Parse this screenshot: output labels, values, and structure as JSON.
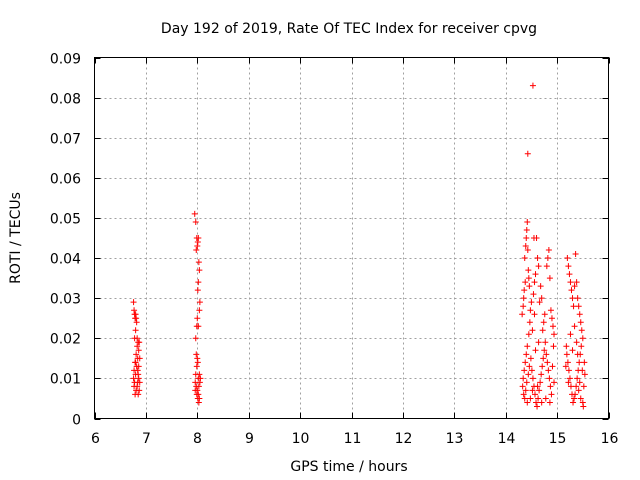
{
  "chart_data": {
    "type": "scatter",
    "title": "Day 192 of 2019, Rate Of TEC Index for receiver cpvg",
    "xlabel": "GPS time / hours",
    "ylabel": "ROTI / TECUs",
    "xlim": [
      6,
      16
    ],
    "ylim": [
      0,
      0.09
    ],
    "xticks": [
      "6",
      "7",
      "8",
      "9",
      "10",
      "11",
      "12",
      "13",
      "14",
      "15",
      "16"
    ],
    "yticks": [
      "0",
      "0.01",
      "0.02",
      "0.03",
      "0.04",
      "0.05",
      "0.06",
      "0.07",
      "0.08",
      "0.09"
    ],
    "grid": true,
    "marker": "+",
    "series": [
      {
        "name": "ROTI",
        "color": "#ff0000",
        "points": [
          [
            6.76,
            0.029
          ],
          [
            6.77,
            0.027
          ],
          [
            6.78,
            0.026
          ],
          [
            6.79,
            0.025
          ],
          [
            6.8,
            0.026
          ],
          [
            6.81,
            0.025
          ],
          [
            6.82,
            0.024
          ],
          [
            6.8,
            0.022
          ],
          [
            6.78,
            0.02
          ],
          [
            6.83,
            0.018
          ],
          [
            6.85,
            0.019
          ],
          [
            6.86,
            0.017
          ],
          [
            6.84,
            0.015
          ],
          [
            6.79,
            0.014
          ],
          [
            6.77,
            0.012
          ],
          [
            6.76,
            0.01
          ],
          [
            6.78,
            0.009
          ],
          [
            6.8,
            0.011
          ],
          [
            6.82,
            0.013
          ],
          [
            6.84,
            0.012
          ],
          [
            6.86,
            0.01
          ],
          [
            6.88,
            0.009
          ],
          [
            6.87,
            0.007
          ],
          [
            6.85,
            0.006
          ],
          [
            6.83,
            0.008
          ],
          [
            6.81,
            0.007
          ],
          [
            6.79,
            0.006
          ],
          [
            6.77,
            0.008
          ],
          [
            6.86,
            0.013
          ],
          [
            6.88,
            0.015
          ],
          [
            6.87,
            0.019
          ],
          [
            6.81,
            0.016
          ],
          [
            6.84,
            0.009
          ],
          [
            6.8,
            0.014
          ],
          [
            6.83,
            0.02
          ],
          [
            6.85,
            0.011
          ],
          [
            7.95,
            0.051
          ],
          [
            7.97,
            0.049
          ],
          [
            7.99,
            0.045
          ],
          [
            8.01,
            0.044
          ],
          [
            8.0,
            0.043
          ],
          [
            7.98,
            0.042
          ],
          [
            8.02,
            0.045
          ],
          [
            8.03,
            0.039
          ],
          [
            8.04,
            0.037
          ],
          [
            8.02,
            0.034
          ],
          [
            8.01,
            0.032
          ],
          [
            8.05,
            0.029
          ],
          [
            8.04,
            0.027
          ],
          [
            8.0,
            0.025
          ],
          [
            7.99,
            0.023
          ],
          [
            8.02,
            0.023
          ],
          [
            7.97,
            0.02
          ],
          [
            7.98,
            0.016
          ],
          [
            8.0,
            0.015
          ],
          [
            8.01,
            0.014
          ],
          [
            7.99,
            0.013
          ],
          [
            7.97,
            0.011
          ],
          [
            7.96,
            0.009
          ],
          [
            7.98,
            0.008
          ],
          [
            8.0,
            0.007
          ],
          [
            8.02,
            0.006
          ],
          [
            8.04,
            0.005
          ],
          [
            8.03,
            0.004
          ],
          [
            8.01,
            0.005
          ],
          [
            7.99,
            0.006
          ],
          [
            8.05,
            0.009
          ],
          [
            8.06,
            0.01
          ],
          [
            8.04,
            0.011
          ],
          [
            8.03,
            0.008
          ],
          [
            7.96,
            0.007
          ],
          [
            8.02,
            0.01
          ],
          [
            14.32,
            0.026
          ],
          [
            14.34,
            0.028
          ],
          [
            14.35,
            0.03
          ],
          [
            14.36,
            0.032
          ],
          [
            14.38,
            0.034
          ],
          [
            14.37,
            0.04
          ],
          [
            14.39,
            0.043
          ],
          [
            14.4,
            0.045
          ],
          [
            14.41,
            0.047
          ],
          [
            14.42,
            0.049
          ],
          [
            14.43,
            0.042
          ],
          [
            14.44,
            0.037
          ],
          [
            14.45,
            0.035
          ],
          [
            14.46,
            0.033
          ],
          [
            14.43,
            0.066
          ],
          [
            14.53,
            0.083
          ],
          [
            14.55,
            0.045
          ],
          [
            14.6,
            0.045
          ],
          [
            14.62,
            0.04
          ],
          [
            14.64,
            0.038
          ],
          [
            14.58,
            0.036
          ],
          [
            14.56,
            0.034
          ],
          [
            14.54,
            0.031
          ],
          [
            14.5,
            0.029
          ],
          [
            14.48,
            0.027
          ],
          [
            14.47,
            0.024
          ],
          [
            14.45,
            0.021
          ],
          [
            14.42,
            0.018
          ],
          [
            14.4,
            0.016
          ],
          [
            14.38,
            0.014
          ],
          [
            14.36,
            0.012
          ],
          [
            14.34,
            0.01
          ],
          [
            14.33,
            0.008
          ],
          [
            14.35,
            0.006
          ],
          [
            14.37,
            0.005
          ],
          [
            14.39,
            0.007
          ],
          [
            14.41,
            0.009
          ],
          [
            14.44,
            0.011
          ],
          [
            14.46,
            0.013
          ],
          [
            14.49,
            0.015
          ],
          [
            14.51,
            0.012
          ],
          [
            14.53,
            0.01
          ],
          [
            14.55,
            0.008
          ],
          [
            14.57,
            0.006
          ],
          [
            14.59,
            0.004
          ],
          [
            14.61,
            0.003
          ],
          [
            14.63,
            0.005
          ],
          [
            14.65,
            0.007
          ],
          [
            14.67,
            0.009
          ],
          [
            14.69,
            0.011
          ],
          [
            14.71,
            0.013
          ],
          [
            14.73,
            0.015
          ],
          [
            14.75,
            0.017
          ],
          [
            14.77,
            0.019
          ],
          [
            14.79,
            0.016
          ],
          [
            14.81,
            0.014
          ],
          [
            14.83,
            0.012
          ],
          [
            14.85,
            0.01
          ],
          [
            14.87,
            0.008
          ],
          [
            14.89,
            0.006
          ],
          [
            14.72,
            0.022
          ],
          [
            14.74,
            0.024
          ],
          [
            14.76,
            0.026
          ],
          [
            14.7,
            0.03
          ],
          [
            14.68,
            0.033
          ],
          [
            14.66,
            0.029
          ],
          [
            14.8,
            0.038
          ],
          [
            14.82,
            0.04
          ],
          [
            14.84,
            0.042
          ],
          [
            14.86,
            0.035
          ],
          [
            14.88,
            0.027
          ],
          [
            14.9,
            0.025
          ],
          [
            14.92,
            0.023
          ],
          [
            14.94,
            0.021
          ],
          [
            14.93,
            0.018
          ],
          [
            14.91,
            0.013
          ],
          [
            14.52,
            0.007
          ],
          [
            14.62,
            0.008
          ],
          [
            14.78,
            0.005
          ],
          [
            14.42,
            0.004
          ],
          [
            14.58,
            0.017
          ],
          [
            14.64,
            0.019
          ],
          [
            14.48,
            0.005
          ],
          [
            14.7,
            0.004
          ],
          [
            14.86,
            0.004
          ],
          [
            14.94,
            0.009
          ],
          [
            14.52,
            0.022
          ],
          [
            14.56,
            0.026
          ],
          [
            15.2,
            0.04
          ],
          [
            15.22,
            0.038
          ],
          [
            15.24,
            0.036
          ],
          [
            15.26,
            0.034
          ],
          [
            15.28,
            0.032
          ],
          [
            15.3,
            0.03
          ],
          [
            15.32,
            0.028
          ],
          [
            15.34,
            0.033
          ],
          [
            15.36,
            0.041
          ],
          [
            15.38,
            0.034
          ],
          [
            15.4,
            0.03
          ],
          [
            15.42,
            0.028
          ],
          [
            15.44,
            0.026
          ],
          [
            15.46,
            0.024
          ],
          [
            15.48,
            0.022
          ],
          [
            15.5,
            0.02
          ],
          [
            15.47,
            0.018
          ],
          [
            15.45,
            0.016
          ],
          [
            15.43,
            0.014
          ],
          [
            15.41,
            0.012
          ],
          [
            15.39,
            0.01
          ],
          [
            15.37,
            0.008
          ],
          [
            15.35,
            0.006
          ],
          [
            15.33,
            0.005
          ],
          [
            15.31,
            0.004
          ],
          [
            15.29,
            0.006
          ],
          [
            15.27,
            0.008
          ],
          [
            15.25,
            0.01
          ],
          [
            15.23,
            0.012
          ],
          [
            15.21,
            0.014
          ],
          [
            15.19,
            0.016
          ],
          [
            15.18,
            0.018
          ],
          [
            15.17,
            0.013
          ],
          [
            15.22,
            0.009
          ],
          [
            15.26,
            0.021
          ],
          [
            15.3,
            0.017
          ],
          [
            15.34,
            0.023
          ],
          [
            15.38,
            0.019
          ],
          [
            15.42,
            0.007
          ],
          [
            15.46,
            0.005
          ],
          [
            15.5,
            0.004
          ],
          [
            15.52,
            0.008
          ],
          [
            15.54,
            0.011
          ],
          [
            15.53,
            0.014
          ],
          [
            15.51,
            0.003
          ],
          [
            15.49,
            0.012
          ],
          [
            15.44,
            0.009
          ],
          [
            15.4,
            0.016
          ]
        ]
      }
    ]
  }
}
